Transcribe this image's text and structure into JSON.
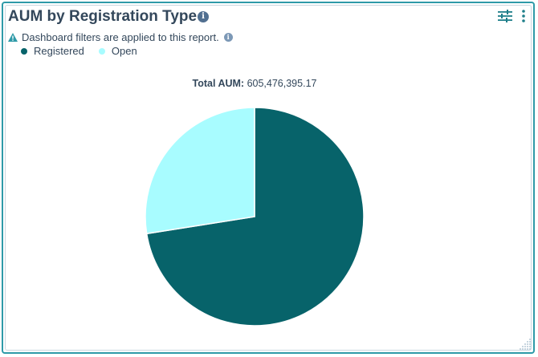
{
  "header": {
    "title": "AUM by Registration Type",
    "notice": "Dashboard filters are applied to this report."
  },
  "total": {
    "label": "Total AUM:",
    "value": "605,476,395.17"
  },
  "icons": {
    "title_info": "info-icon",
    "notice_warning": "warning-icon",
    "notice_info": "info-icon",
    "filter": "filter-sliders-icon",
    "more": "more-vertical-icon",
    "resize": "resize-grip-icon"
  },
  "chart_data": {
    "type": "pie",
    "title": "AUM by Registration Type",
    "legend_position": "top-left",
    "categories": [
      "Registered",
      "Open"
    ],
    "values": [
      72.5,
      27.5
    ],
    "colors": [
      "#07636a",
      "#a8fcff"
    ],
    "start_angle_deg": 0,
    "direction": "clockwise"
  }
}
